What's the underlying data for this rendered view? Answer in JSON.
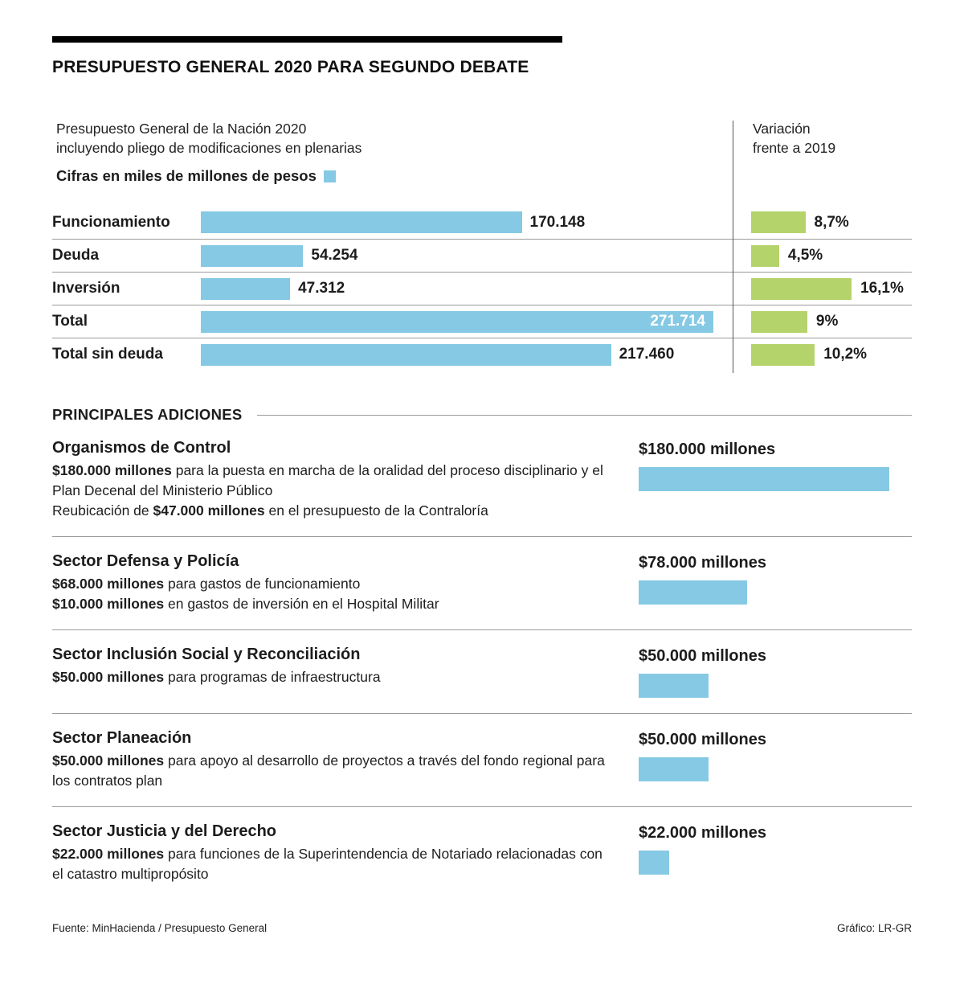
{
  "title": "PRESUPUESTO GENERAL 2020 PARA SEGUNDO DEBATE",
  "subtitle_line1": "Presupuesto General de la Nación 2020",
  "subtitle_line2": "incluyendo pliego de modificaciones en plenarias",
  "legend_label": "Cifras en miles de millones de pesos",
  "variation_header_line1": "Variación",
  "variation_header_line2": "frente a 2019",
  "colors": {
    "blue": "#85C9E4",
    "green": "#B5D36B"
  },
  "chart_data": [
    {
      "type": "bar",
      "title": "Presupuesto General de la Nación 2020 incluyendo pliego de modificaciones en plenarias",
      "unit": "miles de millones de pesos",
      "categories": [
        "Funcionamiento",
        "Deuda",
        "Inversión",
        "Total",
        "Total sin deuda"
      ],
      "series": [
        {
          "name": "Presupuesto 2020",
          "color": "#85C9E4",
          "values": [
            170148,
            54254,
            47312,
            271714,
            217460
          ],
          "labels": [
            "170.148",
            "54.254",
            "47.312",
            "271.714",
            "217.460"
          ]
        },
        {
          "name": "Variación frente a 2019",
          "color": "#B5D36B",
          "values": [
            8.7,
            4.5,
            16.1,
            9,
            10.2
          ],
          "labels": [
            "8,7%",
            "4,5%",
            "16,1%",
            "9%",
            "10,2%"
          ]
        }
      ],
      "xlim_budget": [
        0,
        271714
      ],
      "xlim_variation": [
        0,
        16.1
      ],
      "grid": false,
      "legend_position": "top-left"
    },
    {
      "type": "bar",
      "title": "Principales adiciones",
      "categories": [
        "Organismos de Control",
        "Sector Defensa y Policía",
        "Sector Inclusión Social y Reconciliación",
        "Sector Planeación",
        "Sector Justicia y del Derecho"
      ],
      "values": [
        180000,
        78000,
        50000,
        50000,
        22000
      ],
      "labels": [
        "$180.000 millones",
        "$78.000 millones",
        "$50.000 millones",
        "$50.000 millones",
        "$22.000 millones"
      ],
      "xlim": [
        0,
        180000
      ]
    }
  ],
  "additions": {
    "header": "PRINCIPALES ADICIONES",
    "items": [
      {
        "title": "Organismos de Control",
        "lines": [
          {
            "prefix": "",
            "bold": "$180.000 millones",
            "rest": " para la puesta en marcha de la oralidad del proceso disciplinario y el Plan Decenal del Ministerio Público"
          },
          {
            "prefix": "Reubicación de ",
            "bold": "$47.000 millones",
            "rest": " en el presupuesto de la Contraloría"
          }
        ]
      },
      {
        "title": "Sector Defensa y Policía",
        "lines": [
          {
            "prefix": "",
            "bold": "$68.000 millones",
            "rest": " para gastos de funcionamiento"
          },
          {
            "prefix": "",
            "bold": "$10.000 millones",
            "rest": " en gastos de inversión en el Hospital Militar"
          }
        ]
      },
      {
        "title": "Sector Inclusión Social y Reconciliación",
        "lines": [
          {
            "prefix": "",
            "bold": "$50.000 millones",
            "rest": " para programas de infraestructura"
          }
        ]
      },
      {
        "title": "Sector Planeación",
        "lines": [
          {
            "prefix": "",
            "bold": "$50.000 millones",
            "rest": "  para apoyo al desarrollo de proyectos a través del fondo regional para los contratos plan"
          }
        ]
      },
      {
        "title": "Sector Justicia y del Derecho",
        "lines": [
          {
            "prefix": "",
            "bold": "$22.000 millones",
            "rest": " para funciones de la Superintendencia de Notariado relacionadas con el catastro multipropósito"
          }
        ]
      }
    ]
  },
  "footer": {
    "source": "Fuente: MinHacienda / Presupuesto General",
    "credit": "Gráfico: LR-GR"
  }
}
